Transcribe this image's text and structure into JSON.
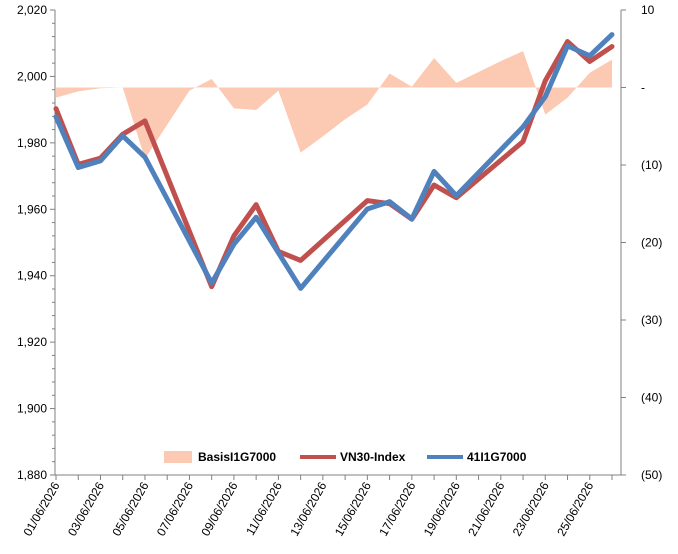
{
  "chart_data": {
    "type": "line",
    "x": [
      "01/06/2026",
      "02/06/2026",
      "03/06/2026",
      "04/06/2026",
      "05/06/2026",
      "06/06/2026",
      "07/06/2026",
      "08/06/2026",
      "09/06/2026",
      "10/06/2026",
      "11/06/2026",
      "12/06/2026",
      "13/06/2026",
      "14/06/2026",
      "15/06/2026",
      "16/06/2026",
      "17/06/2026",
      "18/06/2026",
      "19/06/2026",
      "20/06/2026",
      "21/06/2026",
      "22/06/2026",
      "23/06/2026",
      "24/06/2026",
      "25/06/2026",
      "26/06/2026"
    ],
    "x_tick_labels": [
      "01/06/2026",
      "03/06/2026",
      "05/06/2026",
      "07/06/2026",
      "09/06/2026",
      "11/06/2026",
      "13/06/2026",
      "15/06/2026",
      "17/06/2026",
      "19/06/2026",
      "21/06/2026",
      "23/06/2026",
      "25/06/2026"
    ],
    "y_left": {
      "ticks": [
        "1,880",
        "1,900",
        "1,920",
        "1,940",
        "1,960",
        "1,980",
        "2,000",
        "2,020"
      ],
      "range": [
        1880,
        2020
      ]
    },
    "y_right": {
      "ticks": [
        "(50)",
        "(40)",
        "(30)",
        "(20)",
        "(10)",
        "-",
        "10"
      ],
      "range": [
        -50,
        10
      ]
    },
    "series": [
      {
        "name": "BasisI1G7000",
        "type": "area",
        "axis": "right",
        "color": "#fcc9b3",
        "values": [
          -1.3,
          -0.5,
          -0.1,
          0,
          -9.2,
          -4.8,
          -0.4,
          1.1,
          -2.7,
          -2.9,
          -0.4,
          -8.4,
          -6.3,
          -4.1,
          -2.2,
          1.8,
          0.1,
          3.8,
          0.6,
          2.0,
          3.4,
          4.7,
          -3.5,
          -1.3,
          1.9,
          3.6
        ]
      },
      {
        "name": "VN30-Index",
        "type": "line",
        "axis": "left",
        "color": "#c0504d",
        "values": [
          1990.3,
          1973.5,
          1975.4,
          1982.6,
          1986.6,
          null,
          null,
          1936.7,
          1952.0,
          1961.4,
          1947.3,
          1944.6,
          null,
          null,
          1962.6,
          1961.7,
          1957.0,
          1967.3,
          1963.5,
          null,
          null,
          1980.4,
          1998.7,
          2010.5,
          2004.5,
          2009.0
        ]
      },
      {
        "name": "41I1G7000",
        "type": "line",
        "axis": "left",
        "color": "#4f81bd",
        "values": [
          1987.8,
          1972.6,
          1974.6,
          1982.1,
          1975.7,
          null,
          null,
          1937.8,
          1949.5,
          1957.6,
          1946.9,
          1936.2,
          null,
          null,
          1960.1,
          1962.3,
          1957.1,
          1971.4,
          1964.1,
          null,
          null,
          1984.8,
          1993.9,
          2009.2,
          2006.2,
          2012.6
        ]
      }
    ],
    "legend": {
      "placement": "bottom",
      "entries": [
        "BasisI1G7000",
        "VN30-Index",
        "41I1G7000"
      ]
    },
    "grid": false
  }
}
